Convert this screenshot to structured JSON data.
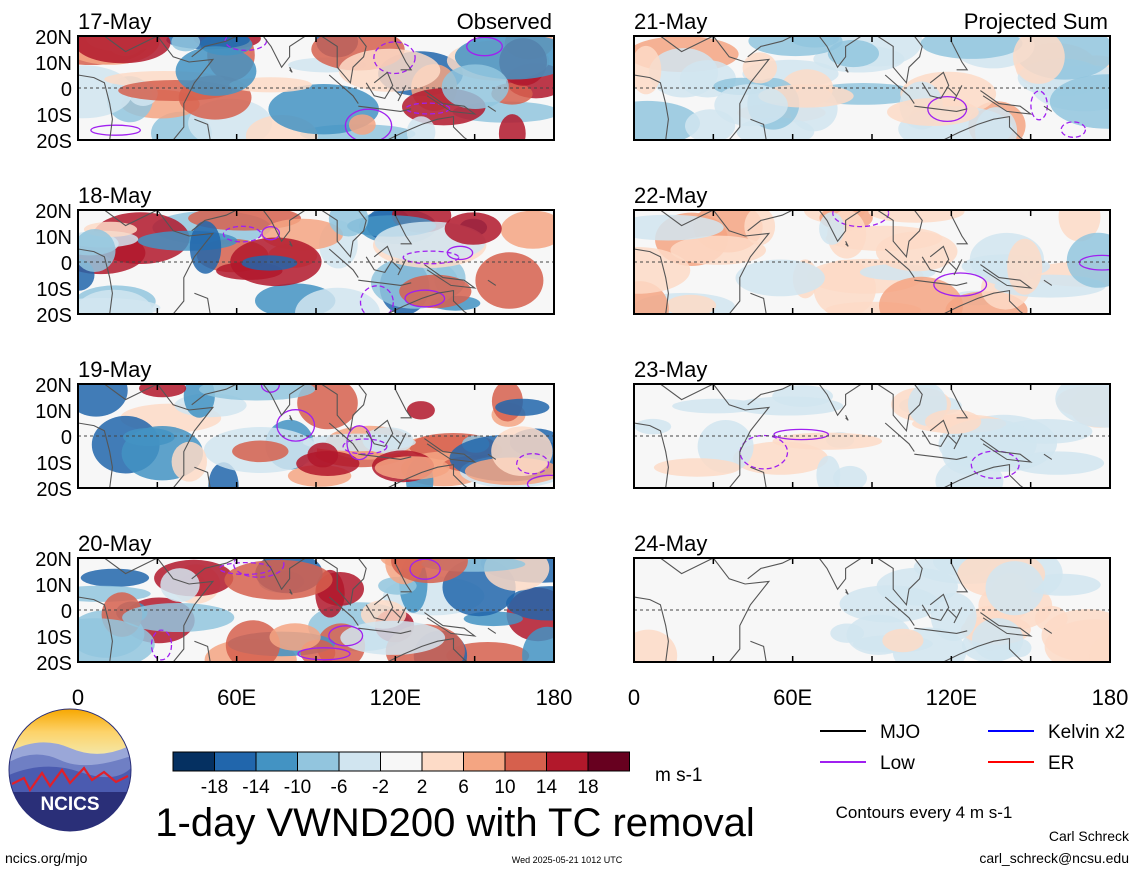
{
  "chart_data": {
    "type": "heatmap",
    "title": "1-day VWND200 with TC removal",
    "units": "m s-1",
    "contour_note": "Contours every 4 m s-1",
    "column_labels": [
      "Observed",
      "Projected Sum"
    ],
    "x_ticks": [
      "0",
      "60E",
      "120E",
      "180"
    ],
    "y_ticks": [
      "20N",
      "10N",
      "0",
      "10S",
      "20S"
    ],
    "xlim": [
      0,
      180
    ],
    "ylim": [
      -20,
      20
    ],
    "colorbar": {
      "colors": [
        "#053061",
        "#2166ac",
        "#4393c3",
        "#92c5de",
        "#d1e5f0",
        "#f7f7f7",
        "#fddbc7",
        "#f4a582",
        "#d6604d",
        "#b2182b",
        "#67001f"
      ],
      "labels": [
        "-18",
        "-14",
        "-10",
        "-6",
        "-2",
        "2",
        "6",
        "10",
        "14",
        "18"
      ]
    },
    "panels": [
      {
        "date": "17-May",
        "column": "Observed",
        "seed": 3,
        "strength": 1.0
      },
      {
        "date": "18-May",
        "column": "Observed",
        "seed": 7,
        "strength": 1.0
      },
      {
        "date": "19-May",
        "column": "Observed",
        "seed": 11,
        "strength": 1.0
      },
      {
        "date": "20-May",
        "column": "Observed",
        "seed": 19,
        "strength": 1.0
      },
      {
        "date": "21-May",
        "column": "Projected Sum",
        "seed": 23,
        "strength": 0.45
      },
      {
        "date": "22-May",
        "column": "Projected Sum",
        "seed": 29,
        "strength": 0.4
      },
      {
        "date": "23-May",
        "column": "Projected Sum",
        "seed": 31,
        "strength": 0.3
      },
      {
        "date": "24-May",
        "column": "Projected Sum",
        "seed": 37,
        "strength": 0.3
      }
    ],
    "legend": [
      {
        "name": "MJO",
        "color": "#000000"
      },
      {
        "name": "Kelvin x2",
        "color": "#0000ff"
      },
      {
        "name": "Low",
        "color": "#a020f0"
      },
      {
        "name": "ER",
        "color": "#ff0000"
      }
    ]
  },
  "logo": {
    "text": "NCICS"
  },
  "footer": {
    "left": "ncics.org/mjo",
    "center": "Wed 2025-05-21 1012 UTC",
    "author": "Carl Schreck",
    "email": "carl_schreck@ncsu.edu"
  }
}
